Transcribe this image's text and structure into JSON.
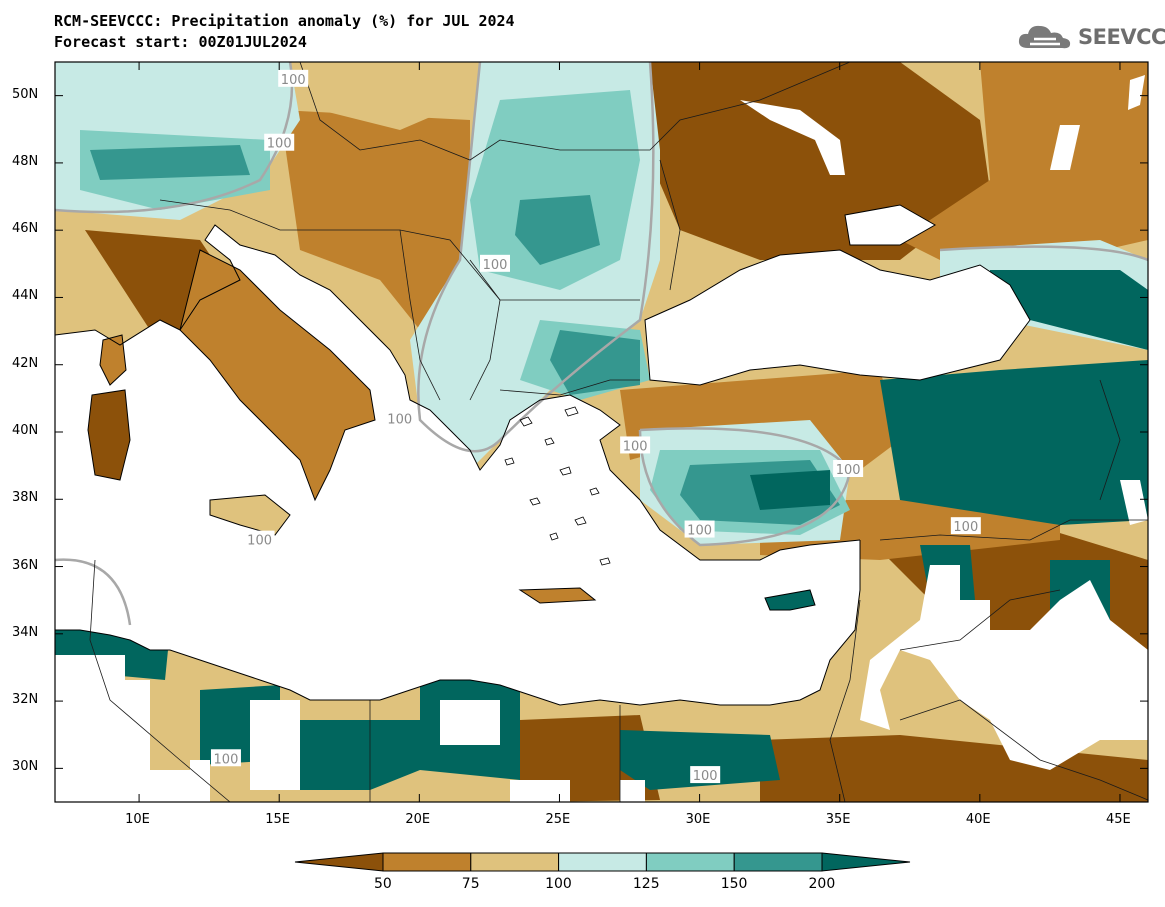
{
  "header": {
    "title_line1": "RCM-SEEVCCC: Precipitation anomaly (%) for JUL 2024",
    "title_line2": "Forecast start: 00Z01JUL2024",
    "logo_text": "SEEVCCC"
  },
  "map": {
    "lon_range": [
      7,
      46
    ],
    "lat_range": [
      29,
      51
    ],
    "lat_ticks": [
      "30N",
      "32N",
      "34N",
      "36N",
      "38N",
      "40N",
      "42N",
      "44N",
      "46N",
      "48N",
      "50N"
    ],
    "lon_ticks": [
      "10E",
      "15E",
      "20E",
      "25E",
      "30E",
      "35E",
      "40E",
      "45E"
    ],
    "contour_labels": [
      {
        "text": "100",
        "lon": 15.5,
        "lat": 50.5
      },
      {
        "text": "100",
        "lon": 15.0,
        "lat": 48.6
      },
      {
        "text": "100",
        "lon": 22.7,
        "lat": 45.0
      },
      {
        "text": "100",
        "lon": 19.3,
        "lat": 40.4
      },
      {
        "text": "100",
        "lon": 14.3,
        "lat": 36.8
      },
      {
        "text": "100",
        "lon": 27.7,
        "lat": 39.6
      },
      {
        "text": "100",
        "lon": 35.3,
        "lat": 38.9
      },
      {
        "text": "100",
        "lon": 30.0,
        "lat": 37.1
      },
      {
        "text": "100",
        "lon": 39.5,
        "lat": 37.2
      },
      {
        "text": "100",
        "lon": 13.1,
        "lat": 30.3
      },
      {
        "text": "100",
        "lon": 30.2,
        "lat": 29.8
      }
    ],
    "colors": {
      "sea": "#ffffff",
      "base": "#dfc27d",
      "lt50": "#8c510a",
      "50_75": "#bf812d",
      "75_100": "#dfc27d",
      "100_125": "#c7eae5",
      "125_150": "#80cdc1",
      "150_200": "#35978f",
      "gt200": "#01665e"
    }
  },
  "colorbar": {
    "labels": [
      "50",
      "75",
      "100",
      "125",
      "150",
      "200"
    ],
    "colors": [
      "#8c510a",
      "#bf812d",
      "#dfc27d",
      "#c7eae5",
      "#80cdc1",
      "#35978f",
      "#01665e"
    ]
  }
}
